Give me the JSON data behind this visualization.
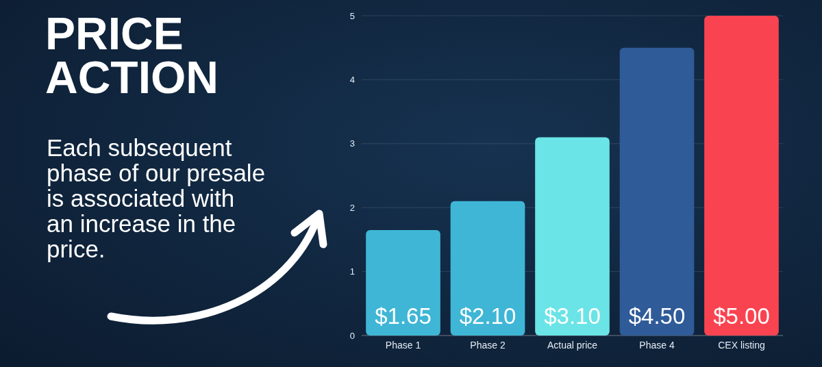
{
  "chart_data": {
    "type": "bar",
    "title": "PRICE ACTION",
    "subtitle": "Each subsequent phase of our presale is associated with an increase in the price.",
    "categories": [
      "Phase 1",
      "Phase 2",
      "Actual price",
      "Phase 4",
      "CEX listing"
    ],
    "values": [
      1.65,
      2.1,
      3.1,
      4.5,
      5.0
    ],
    "colors": [
      "#3fb6d6",
      "#3fb6d6",
      "#6ae4e6",
      "#2f5b98",
      "#fa4350"
    ],
    "value_labels": [
      "$1.65",
      "$2.10",
      "$3.10",
      "$4.50",
      "$5.00"
    ],
    "ylim": [
      0,
      5
    ],
    "yticks": [
      0,
      1,
      2,
      3,
      4,
      5
    ],
    "grid": "y"
  }
}
